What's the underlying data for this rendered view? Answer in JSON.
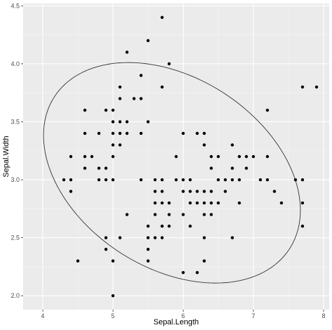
{
  "chart_data": {
    "type": "scatter",
    "xlabel": "Sepal.Length",
    "ylabel": "Sepal.Width",
    "xlim": [
      3.72,
      8.08
    ],
    "ylim": [
      1.88,
      4.52
    ],
    "x_ticks": [
      4,
      5,
      6,
      7,
      8
    ],
    "x_tick_labels": [
      "4",
      "5",
      "6",
      "7",
      "8"
    ],
    "y_ticks": [
      2.0,
      2.5,
      3.0,
      3.5,
      4.0,
      4.5
    ],
    "y_tick_labels": [
      "2.0",
      "2.5",
      "3.0",
      "3.5",
      "4.0",
      "4.5"
    ],
    "grid": true,
    "legend": "none",
    "colors": {
      "panel": "#ebebeb",
      "grid_major": "#ffffff",
      "grid_minor": "#f5f5f5",
      "points": "#000000",
      "ellipse": "#333333",
      "tick": "#333333"
    },
    "points": [
      [
        4.3,
        3.0
      ],
      [
        4.4,
        2.9
      ],
      [
        4.4,
        3.0
      ],
      [
        4.4,
        3.2
      ],
      [
        4.5,
        2.3
      ],
      [
        4.6,
        3.1
      ],
      [
        4.6,
        3.2
      ],
      [
        4.6,
        3.4
      ],
      [
        4.6,
        3.6
      ],
      [
        4.7,
        3.2
      ],
      [
        4.8,
        3.0
      ],
      [
        4.8,
        3.1
      ],
      [
        4.8,
        3.4
      ],
      [
        4.9,
        2.4
      ],
      [
        4.9,
        2.5
      ],
      [
        4.9,
        3.0
      ],
      [
        4.9,
        3.1
      ],
      [
        4.9,
        3.6
      ],
      [
        5.0,
        2.0
      ],
      [
        5.0,
        2.3
      ],
      [
        5.0,
        3.0
      ],
      [
        5.0,
        3.2
      ],
      [
        5.0,
        3.3
      ],
      [
        5.0,
        3.4
      ],
      [
        5.0,
        3.5
      ],
      [
        5.0,
        3.6
      ],
      [
        5.1,
        2.5
      ],
      [
        5.1,
        3.3
      ],
      [
        5.1,
        3.4
      ],
      [
        5.1,
        3.5
      ],
      [
        5.1,
        3.7
      ],
      [
        5.1,
        3.8
      ],
      [
        5.2,
        2.7
      ],
      [
        5.2,
        3.4
      ],
      [
        5.2,
        3.5
      ],
      [
        5.2,
        4.1
      ],
      [
        5.3,
        3.7
      ],
      [
        5.4,
        3.0
      ],
      [
        5.4,
        3.4
      ],
      [
        5.4,
        3.7
      ],
      [
        5.4,
        3.9
      ],
      [
        5.5,
        2.3
      ],
      [
        5.5,
        2.4
      ],
      [
        5.5,
        2.5
      ],
      [
        5.5,
        2.6
      ],
      [
        5.5,
        3.5
      ],
      [
        5.5,
        4.2
      ],
      [
        5.6,
        2.5
      ],
      [
        5.6,
        2.7
      ],
      [
        5.6,
        2.8
      ],
      [
        5.6,
        2.9
      ],
      [
        5.6,
        3.0
      ],
      [
        5.7,
        2.5
      ],
      [
        5.7,
        2.6
      ],
      [
        5.7,
        2.8
      ],
      [
        5.7,
        2.9
      ],
      [
        5.7,
        3.0
      ],
      [
        5.7,
        3.8
      ],
      [
        5.7,
        4.4
      ],
      [
        5.8,
        2.6
      ],
      [
        5.8,
        2.7
      ],
      [
        5.8,
        2.8
      ],
      [
        5.8,
        4.0
      ],
      [
        5.9,
        3.0
      ],
      [
        5.9,
        3.2
      ],
      [
        6.0,
        2.2
      ],
      [
        6.0,
        2.7
      ],
      [
        6.0,
        2.9
      ],
      [
        6.0,
        3.0
      ],
      [
        6.0,
        3.4
      ],
      [
        6.1,
        2.6
      ],
      [
        6.1,
        2.8
      ],
      [
        6.1,
        2.9
      ],
      [
        6.1,
        3.0
      ],
      [
        6.2,
        2.2
      ],
      [
        6.2,
        2.8
      ],
      [
        6.2,
        2.9
      ],
      [
        6.2,
        3.4
      ],
      [
        6.3,
        2.3
      ],
      [
        6.3,
        2.5
      ],
      [
        6.3,
        2.7
      ],
      [
        6.3,
        2.8
      ],
      [
        6.3,
        2.9
      ],
      [
        6.3,
        3.3
      ],
      [
        6.3,
        3.4
      ],
      [
        6.4,
        2.7
      ],
      [
        6.4,
        2.8
      ],
      [
        6.4,
        2.9
      ],
      [
        6.4,
        3.1
      ],
      [
        6.4,
        3.2
      ],
      [
        6.5,
        2.8
      ],
      [
        6.5,
        3.0
      ],
      [
        6.5,
        3.2
      ],
      [
        6.6,
        2.9
      ],
      [
        6.6,
        3.0
      ],
      [
        6.7,
        2.5
      ],
      [
        6.7,
        3.0
      ],
      [
        6.7,
        3.1
      ],
      [
        6.7,
        3.3
      ],
      [
        6.8,
        2.8
      ],
      [
        6.8,
        3.0
      ],
      [
        6.8,
        3.2
      ],
      [
        6.9,
        3.1
      ],
      [
        6.9,
        3.2
      ],
      [
        7.0,
        3.2
      ],
      [
        7.1,
        3.0
      ],
      [
        7.2,
        3.0
      ],
      [
        7.2,
        3.2
      ],
      [
        7.2,
        3.6
      ],
      [
        7.3,
        2.9
      ],
      [
        7.4,
        2.8
      ],
      [
        7.6,
        3.0
      ],
      [
        7.7,
        2.6
      ],
      [
        7.7,
        2.8
      ],
      [
        7.7,
        3.0
      ],
      [
        7.7,
        3.8
      ],
      [
        7.9,
        3.8
      ]
    ],
    "ellipse": {
      "center": [
        5.84,
        3.06
      ],
      "semi_axis_major": 1.866,
      "semi_axis_minor": 0.8767,
      "angle_deg": -12.9
    }
  }
}
